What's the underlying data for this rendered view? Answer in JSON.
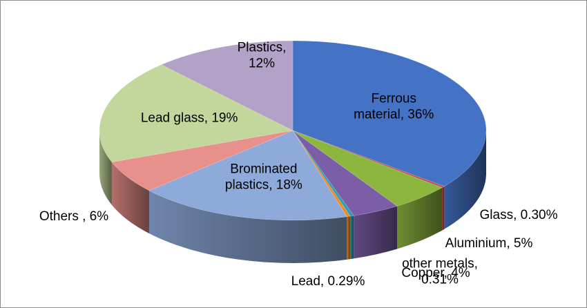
{
  "chart_data": {
    "type": "pie",
    "style": "3d",
    "title": "",
    "slices": [
      {
        "label": "Ferrous material, 36%",
        "lines": [
          "Ferrous",
          "material, 36%"
        ],
        "value": 36,
        "color": "#4472c4",
        "label_pos": "inside"
      },
      {
        "label": "Glass, 0.30%",
        "lines": [
          "Glass, 0.30%"
        ],
        "value": 0.3,
        "color": "#c0504d",
        "label_pos": "outside"
      },
      {
        "label": "Aluminium, 5%",
        "lines": [
          "Aluminium, 5%"
        ],
        "value": 5,
        "color": "#8db63f",
        "label_pos": "outside"
      },
      {
        "label": "Copper, 4%",
        "lines": [
          "Copper, 4%"
        ],
        "value": 4,
        "color": "#7b5ea7",
        "label_pos": "outside"
      },
      {
        "label": "other metals, 0.31%",
        "lines": [
          "other metals,",
          "0.31%"
        ],
        "value": 0.31,
        "color": "#2c9fb8",
        "label_pos": "outside"
      },
      {
        "label": "Lead, 0.29%",
        "lines": [
          "Lead, 0.29%"
        ],
        "value": 0.29,
        "color": "#f08a24",
        "label_pos": "outside"
      },
      {
        "label": "Brominated plastics, 18%",
        "lines": [
          "Brominated",
          "plastics, 18%"
        ],
        "value": 18,
        "color": "#8eaadb",
        "label_pos": "inside"
      },
      {
        "label": "Others , 6%",
        "lines": [
          "Others , 6%"
        ],
        "value": 6,
        "color": "#e8908c",
        "label_pos": "outside"
      },
      {
        "label": "Lead glass, 19%",
        "lines": [
          "Lead glass, 19%"
        ],
        "value": 19,
        "color": "#c3d69b",
        "label_pos": "inside"
      },
      {
        "label": "Plastics, 12%",
        "lines": [
          "Plastics,",
          "12%"
        ],
        "value": 12,
        "color": "#b3a2c7",
        "label_pos": "inside"
      }
    ]
  }
}
